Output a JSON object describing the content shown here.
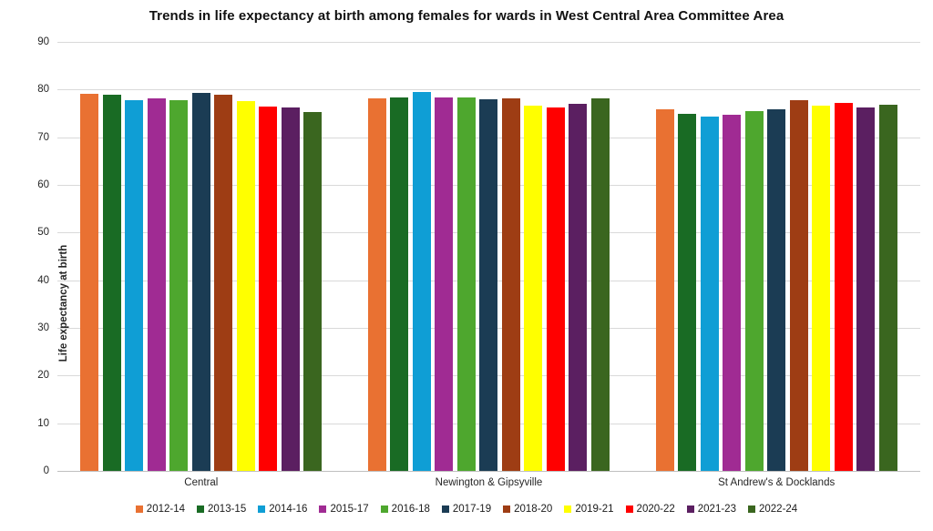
{
  "chart_data": {
    "type": "bar",
    "title": "Trends in life expectancy at birth among females for wards in West Central Area Committee Area",
    "xlabel": "",
    "ylabel": "Life expectancy at birth",
    "ylim": [
      0,
      90
    ],
    "yticks": [
      0,
      10,
      20,
      30,
      40,
      50,
      60,
      70,
      80,
      90
    ],
    "grid": true,
    "legend_position": "bottom",
    "categories": [
      "Central",
      "Newington & Gipsyville",
      "St Andrew's & Docklands"
    ],
    "series": [
      {
        "name": "2012-14",
        "color": "#E97132",
        "values": [
          79.2,
          78.1,
          75.8
        ]
      },
      {
        "name": "2013-15",
        "color": "#196B24",
        "values": [
          79.0,
          78.4,
          74.9
        ]
      },
      {
        "name": "2014-16",
        "color": "#0F9ED5",
        "values": [
          77.7,
          79.5,
          74.4
        ]
      },
      {
        "name": "2015-17",
        "color": "#A02B93",
        "values": [
          78.1,
          78.3,
          74.8
        ]
      },
      {
        "name": "2016-18",
        "color": "#4EA72E",
        "values": [
          77.8,
          78.4,
          75.4
        ]
      },
      {
        "name": "2017-19",
        "color": "#1B3C54",
        "values": [
          79.3,
          77.9,
          75.8
        ]
      },
      {
        "name": "2018-20",
        "color": "#9E3D14",
        "values": [
          78.9,
          78.1,
          77.7
        ]
      },
      {
        "name": "2019-21",
        "color": "#FFFF00",
        "values": [
          77.6,
          76.7,
          76.6
        ]
      },
      {
        "name": "2020-22",
        "color": "#FF0000",
        "values": [
          76.5,
          76.2,
          77.2
        ]
      },
      {
        "name": "2021-23",
        "color": "#5B1F61",
        "values": [
          76.2,
          77.0,
          76.2
        ]
      },
      {
        "name": "2022-24",
        "color": "#3A661F",
        "values": [
          75.2,
          78.1,
          76.8
        ]
      }
    ]
  }
}
